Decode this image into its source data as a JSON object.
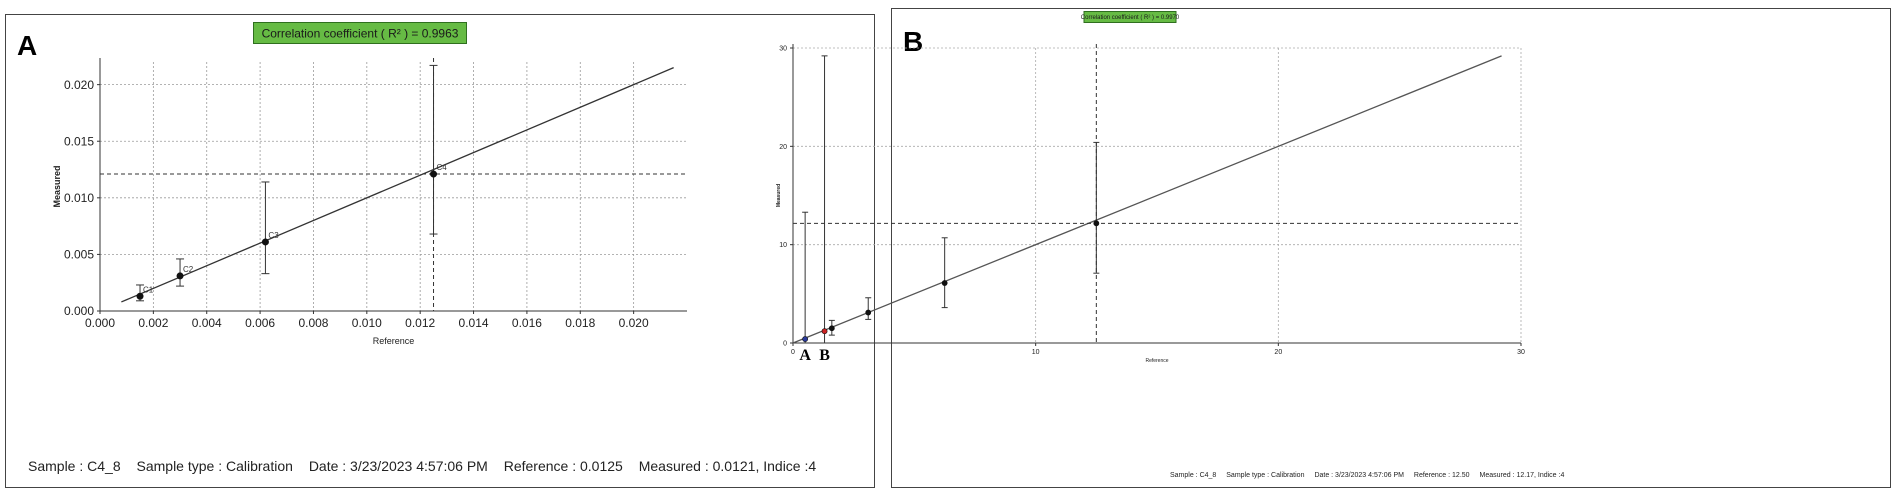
{
  "figure": {
    "panel_a_label": "A",
    "panel_b_label": "B"
  },
  "chart_data": [
    {
      "panel": "A",
      "type": "scatter",
      "title": "Correlation coefficient ( R² ) = 0.9963",
      "xlabel": "Reference",
      "ylabel": "Measured",
      "xlim": [
        0.0,
        0.022
      ],
      "ylim": [
        0.0,
        0.022
      ],
      "xticks": [
        "0.000",
        "0.002",
        "0.004",
        "0.006",
        "0.008",
        "0.010",
        "0.012",
        "0.014",
        "0.016",
        "0.018",
        "0.020"
      ],
      "yticks": [
        "0.000",
        "0.005",
        "0.010",
        "0.015",
        "0.020"
      ],
      "grid": true,
      "fit_line": [
        [
          0.0008,
          0.0008
        ],
        [
          0.0215,
          0.0215
        ]
      ],
      "crosshair": {
        "x": 0.0125,
        "y": 0.0121
      },
      "points": [
        {
          "label": "C1",
          "x": 0.0015,
          "y": 0.0013,
          "err_low": 0.0009,
          "err_high": 0.0023
        },
        {
          "label": "C2",
          "x": 0.003,
          "y": 0.0031,
          "err_low": 0.0022,
          "err_high": 0.0046
        },
        {
          "label": "C3",
          "x": 0.0062,
          "y": 0.0061,
          "err_low": 0.0033,
          "err_high": 0.0114
        },
        {
          "label": "C4",
          "x": 0.0125,
          "y": 0.0121,
          "err_low": 0.0068,
          "err_high": 0.0217
        }
      ],
      "colors": {
        "r2_box": "#66bb44",
        "line": "#333333",
        "grid": "#9a9a9a"
      },
      "status": {
        "sample": "Sample : C4_8",
        "sample_type": "Sample type : Calibration",
        "date": "Date : 3/23/2023 4:57:06 PM",
        "reference": "Reference : 0.0125",
        "measured": "Measured : 0.0121, Indice :4"
      }
    },
    {
      "panel": "B",
      "type": "scatter",
      "title": "Correlation coefficient ( R² ) = 0.9970",
      "xlabel": "Reference",
      "ylabel": "Measured",
      "xlim": [
        0,
        30
      ],
      "ylim": [
        0,
        30
      ],
      "xticks": [
        "0",
        "10",
        "20",
        "30"
      ],
      "yticks": [
        "0",
        "10",
        "20",
        "30"
      ],
      "grid": true,
      "fit_line": [
        [
          0,
          0
        ],
        [
          29.2,
          29.2
        ]
      ],
      "crosshair": {
        "x": 12.5,
        "y": 12.17
      },
      "points": [
        {
          "label": "",
          "x": 0.5,
          "y": 0.4,
          "err_low": 0.0,
          "err_high": 13.3,
          "marker": "A",
          "color": "#2a3a9a"
        },
        {
          "label": "",
          "x": 1.3,
          "y": 1.2,
          "err_low": 0.0,
          "err_high": 29.2,
          "marker": "B",
          "color": "#cc2222"
        },
        {
          "label": "",
          "x": 1.6,
          "y": 1.5,
          "err_low": 0.8,
          "err_high": 2.3
        },
        {
          "label": "",
          "x": 3.1,
          "y": 3.1,
          "err_low": 2.4,
          "err_high": 4.6
        },
        {
          "label": "",
          "x": 6.25,
          "y": 6.1,
          "err_low": 3.6,
          "err_high": 10.7
        },
        {
          "label": "",
          "x": 12.5,
          "y": 12.17,
          "err_low": 7.1,
          "err_high": 20.4
        }
      ],
      "colors": {
        "r2_box": "#66bb44",
        "line": "#555555",
        "grid": "#aaaaaa"
      },
      "status": {
        "sample": "Sample : C4_8",
        "sample_type": "Sample type : Calibration",
        "date": "Date : 3/23/2023 4:57:06 PM",
        "reference": "Reference : 12.50",
        "measured": "Measured : 12.17, Indice :4"
      }
    }
  ]
}
